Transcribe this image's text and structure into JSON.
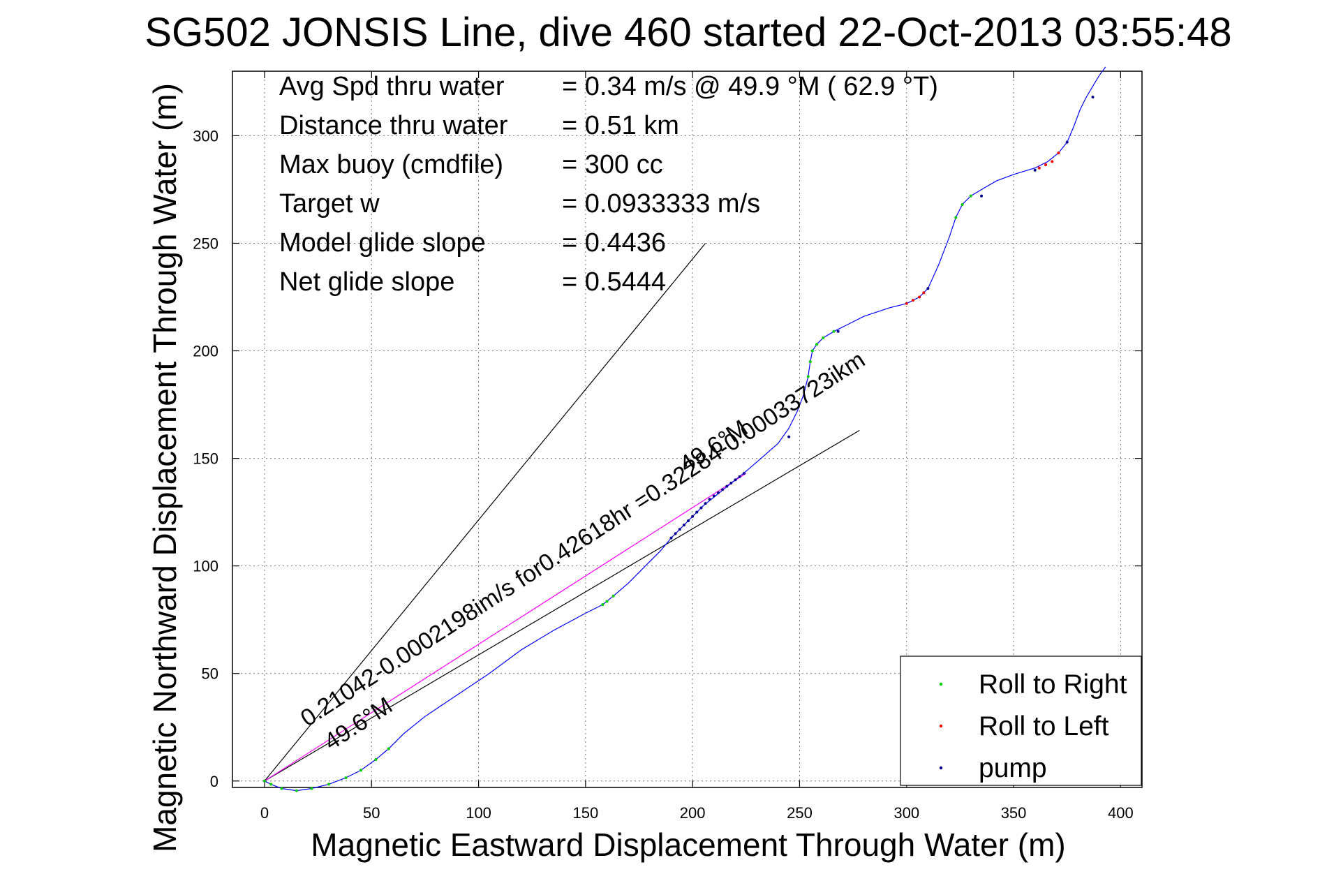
{
  "chart_data": {
    "type": "scatter",
    "title": "SG502 JONSIS Line, dive 460 started 22-Oct-2013 03:55:48",
    "xlabel": "Magnetic Eastward Displacement Through Water (m)",
    "ylabel": "Magnetic Northward Displacement Through Water (m)",
    "xlim": [
      -15,
      410
    ],
    "ylim": [
      -3,
      330
    ],
    "xticks": [
      0,
      50,
      100,
      150,
      200,
      250,
      300,
      350,
      400
    ],
    "yticks": [
      0,
      50,
      100,
      150,
      200,
      250,
      300
    ],
    "grid": true,
    "legend_position": "bottom-right",
    "info": [
      {
        "label": "Avg Spd thru water",
        "value": "=  0.34 m/s @  49.9 °M ( 62.9 °T)"
      },
      {
        "label": "Distance thru water",
        "value": "=  0.51 km"
      },
      {
        "label": "Max buoy (cmdfile)",
        "value": "= 300 cc"
      },
      {
        "label": "Target w",
        "value": "= 0.0933333 m/s"
      },
      {
        "label": "Model glide slope",
        "value": "= 0.4436"
      },
      {
        "label": "Net glide slope",
        "value": "= 0.5444"
      }
    ],
    "annotations": [
      {
        "text": "0.21042-0.0002198im/s for0.42618hr =0.32284-0.00033723ikm",
        "x": 20,
        "y": 25,
        "angle_deg": 33
      },
      {
        "text": "49.6°M",
        "x": 31,
        "y": 14,
        "angle_deg": 33
      },
      {
        "text": "49.6°M",
        "x": 197,
        "y": 143,
        "angle_deg": 33
      }
    ],
    "reference_lines": [
      {
        "name": "glide envelope upper",
        "x": [
          0,
          206
        ],
        "y": [
          0,
          250
        ],
        "color": "#000000"
      },
      {
        "name": "glide envelope lower",
        "x": [
          0,
          278
        ],
        "y": [
          0,
          163
        ],
        "color": "#000000"
      },
      {
        "name": "net heading",
        "x": [
          0,
          225
        ],
        "y": [
          0,
          143
        ],
        "color": "#ff00ff"
      }
    ],
    "track": {
      "name": "track",
      "color": "#0000ff",
      "x": [
        0,
        3,
        8,
        15,
        22,
        30,
        38,
        45,
        52,
        58,
        65,
        75,
        90,
        105,
        120,
        135,
        150,
        158,
        163,
        170,
        178,
        185,
        190,
        195,
        200,
        205,
        210,
        215,
        220,
        225,
        232,
        240,
        245,
        249,
        252,
        254,
        255,
        256,
        258,
        261,
        266,
        272,
        280,
        292,
        300,
        306,
        310,
        315,
        320,
        323,
        326,
        330,
        335,
        342,
        350,
        360,
        366,
        371,
        375,
        378,
        381,
        384,
        387,
        390,
        393
      ],
      "y": [
        0,
        -1.5,
        -3.5,
        -4.5,
        -3.5,
        -1.5,
        1.5,
        5,
        10,
        15,
        22,
        30,
        40,
        50,
        61,
        70,
        78,
        82,
        86,
        92,
        100,
        107,
        113,
        118,
        123,
        128,
        132,
        136,
        140,
        144,
        150,
        157,
        164,
        172,
        180,
        188,
        195,
        200,
        203,
        206,
        209,
        212,
        216,
        220,
        222,
        225,
        229,
        240,
        253,
        262,
        268,
        272,
        275,
        279,
        282,
        285,
        288,
        292,
        297,
        304,
        312,
        318,
        323,
        328,
        332
      ]
    },
    "series": [
      {
        "name": "Roll to Right",
        "color": "#00cc00",
        "x": [
          0,
          3,
          8,
          15,
          22,
          30,
          38,
          45,
          52,
          58,
          158,
          160,
          163,
          254,
          255,
          256,
          258,
          261,
          266,
          323,
          326,
          330
        ],
        "y": [
          0,
          -1.5,
          -3.5,
          -4.5,
          -3.5,
          -1.5,
          1.5,
          5,
          10,
          15,
          82,
          83.5,
          86,
          188,
          195,
          200,
          203,
          206,
          209,
          262,
          268,
          272
        ]
      },
      {
        "name": "Roll to Left",
        "color": "#ff0000",
        "x": [
          300,
          303,
          306,
          308,
          362,
          365,
          368,
          371
        ],
        "y": [
          222,
          223.5,
          225,
          227,
          285,
          286.5,
          288,
          292
        ]
      },
      {
        "name": "pump",
        "color": "#00008b",
        "x": [
          190,
          192,
          194,
          196,
          198,
          200,
          202,
          204,
          206,
          208,
          210,
          212,
          214,
          216,
          218,
          220,
          222,
          224,
          245,
          268,
          310,
          335,
          360,
          375,
          387
        ],
        "y": [
          113,
          115,
          117,
          119,
          121,
          123,
          125,
          127,
          129,
          131,
          132.5,
          134,
          135.5,
          137,
          138.5,
          140,
          141.5,
          143,
          160,
          209,
          229,
          272,
          284,
          297,
          318
        ]
      }
    ]
  }
}
